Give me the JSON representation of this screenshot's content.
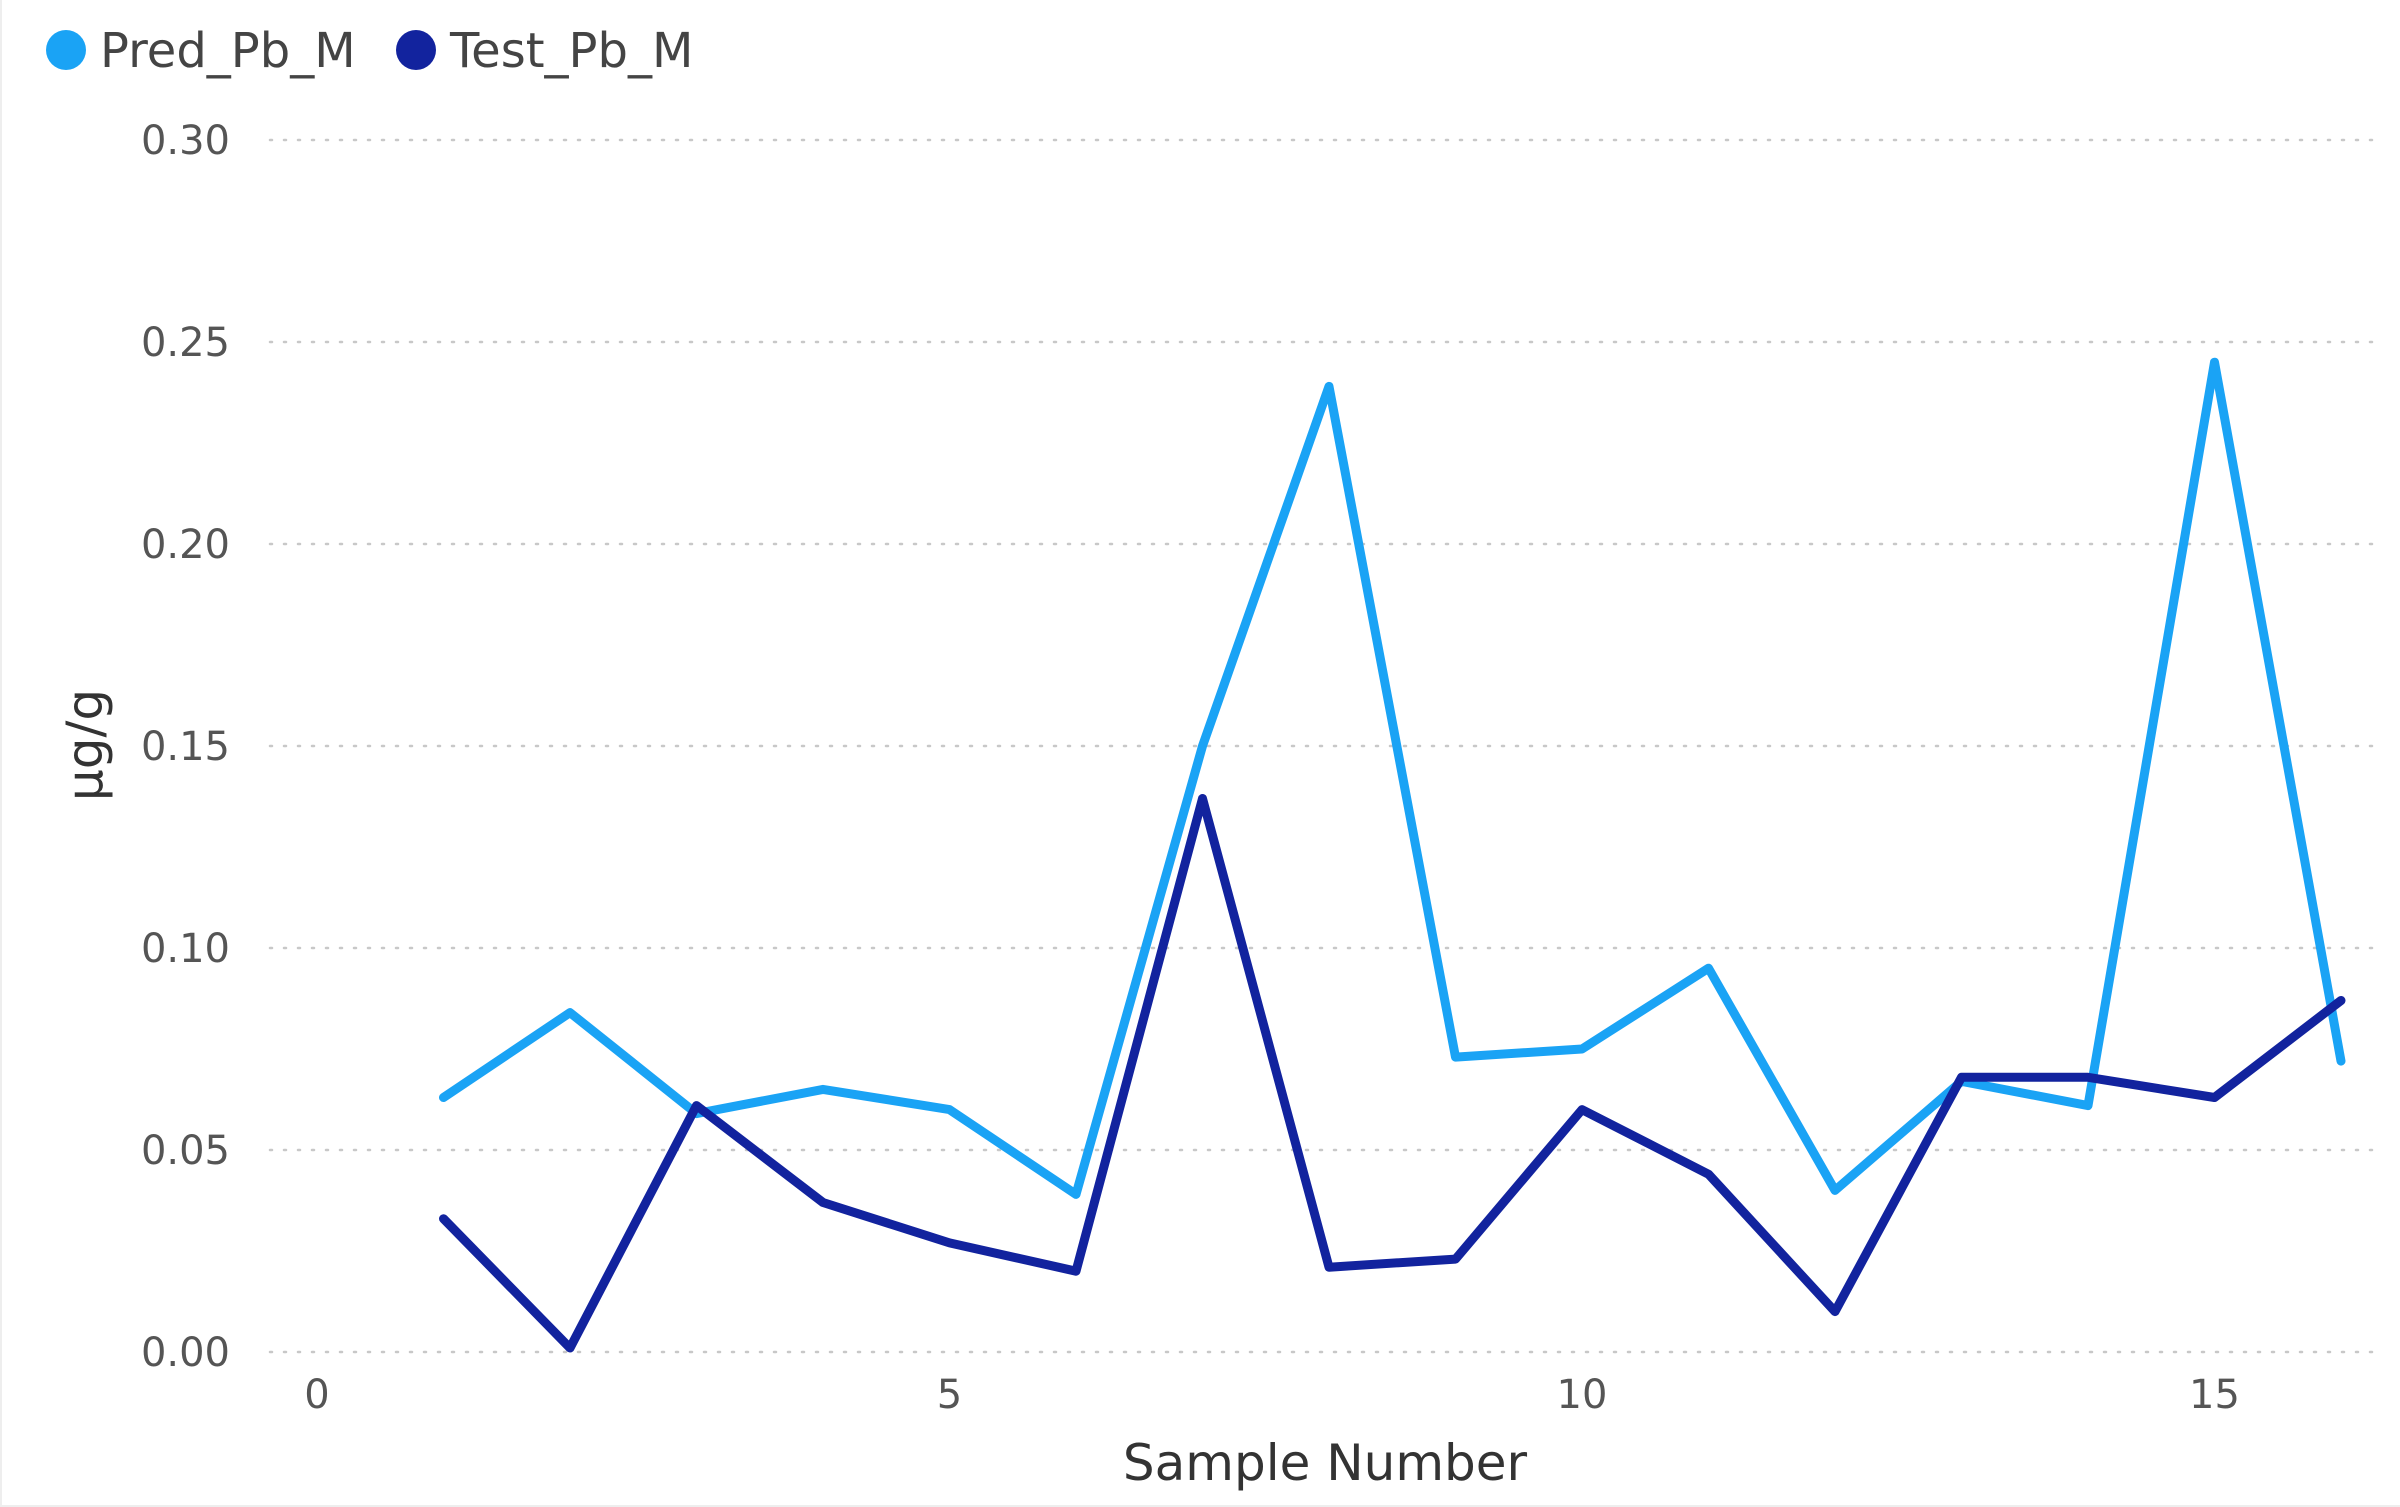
{
  "chart_data": {
    "type": "line",
    "xlabel": "Sample Number",
    "ylabel": "µg/g",
    "xlim": [
      0,
      16
    ],
    "ylim": [
      0,
      0.3
    ],
    "x_ticks": [
      0,
      5,
      10,
      15
    ],
    "x_tick_labels": [
      "0",
      "5",
      "10",
      "15"
    ],
    "y_ticks": [
      0,
      0.05,
      0.1,
      0.15,
      0.2,
      0.25,
      0.3
    ],
    "y_tick_labels": [
      "0.00",
      "0.05",
      "0.10",
      "0.15",
      "0.20",
      "0.25",
      "0.30"
    ],
    "grid": "horizontal dotted",
    "legend_position": "top-left",
    "x": [
      1,
      2,
      3,
      4,
      5,
      6,
      7,
      8,
      9,
      10,
      11,
      12,
      13,
      14,
      15,
      16
    ],
    "series": [
      {
        "name": "Pred_Pb_M",
        "color": "#1aa3f5",
        "values": [
          0.063,
          0.084,
          0.059,
          0.065,
          0.06,
          0.039,
          0.15,
          0.239,
          0.073,
          0.075,
          0.095,
          0.04,
          0.067,
          0.061,
          0.245,
          0.072
        ]
      },
      {
        "name": "Test_Pb_M",
        "color": "#12239e",
        "values": [
          0.033,
          0.001,
          0.061,
          0.037,
          0.027,
          0.02,
          0.137,
          0.021,
          0.023,
          0.06,
          0.044,
          0.01,
          0.068,
          0.068,
          0.063,
          0.087
        ]
      }
    ]
  }
}
